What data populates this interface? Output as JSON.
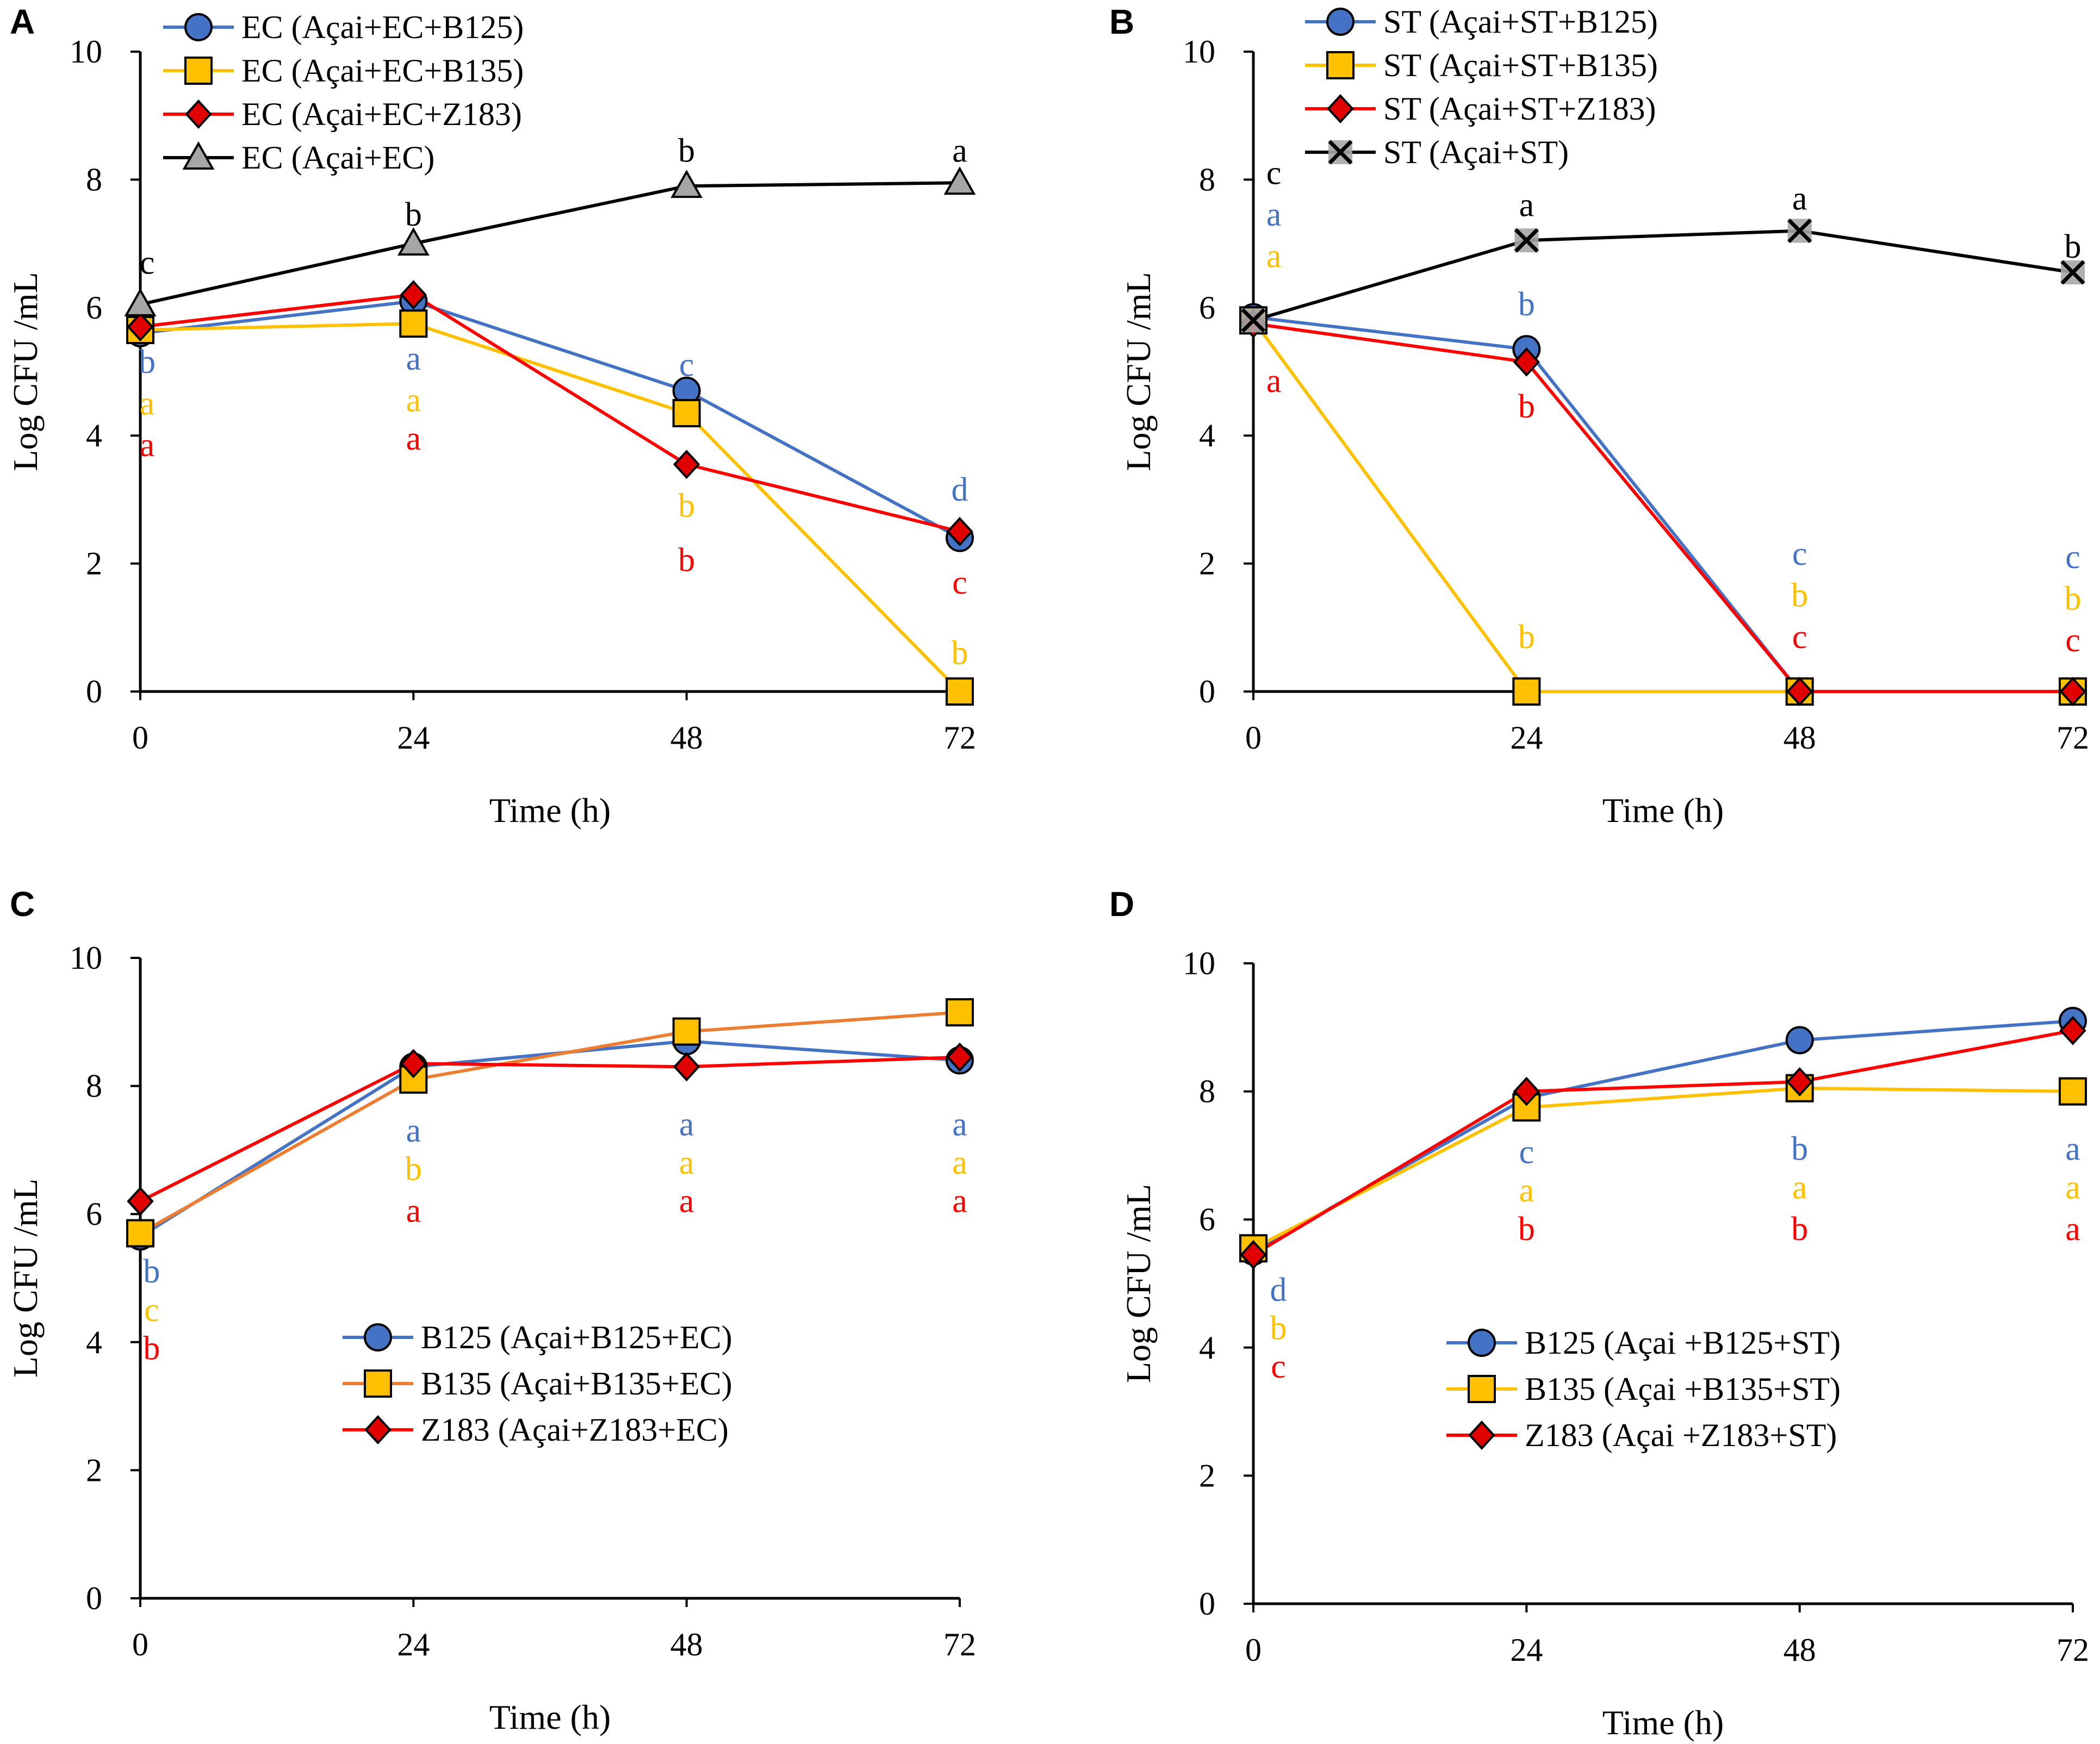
{
  "colors": {
    "blue": "#4472C4",
    "yellow": "#FFC000",
    "orange": "#ED7D31",
    "red": "#FF0000",
    "black": "#000000",
    "gray": "#A6A6A6",
    "marker_blue": "#4472C4",
    "marker_yellow": "#FFC000",
    "marker_red": "#E00000",
    "marker_gray": "#A6A6A6"
  },
  "chart_data": [
    {
      "panel_label": "A",
      "type": "line",
      "xlabel": "Time (h)",
      "ylabel": "Log CFU /mL",
      "x": [
        0,
        24,
        48,
        72
      ],
      "x_tick_labels": [
        "0",
        "24",
        "48",
        "72"
      ],
      "ylim": [
        0,
        10
      ],
      "y_ticks": [
        0,
        2,
        4,
        6,
        8,
        10
      ],
      "y_tick_labels": [
        "0",
        "2",
        "4",
        "6",
        "8",
        "10"
      ],
      "legend_position": "top-left",
      "series": [
        {
          "name": "EC (Açai+EC+B125)",
          "color": "#4472C4",
          "marker": "circle",
          "marker_fill": "#4472C4",
          "values": [
            5.6,
            6.1,
            4.7,
            2.4
          ]
        },
        {
          "name": "EC (Açai+EC+B135)",
          "color": "#FFC000",
          "marker": "square",
          "marker_fill": "#FFC000",
          "values": [
            5.65,
            5.75,
            4.35,
            0
          ]
        },
        {
          "name": "EC (Açai+EC+Z183)",
          "color": "#FF0000",
          "marker": "diamond",
          "marker_fill": "#E00000",
          "values": [
            5.7,
            6.2,
            3.55,
            2.5
          ]
        },
        {
          "name": "EC (Açai+EC)",
          "color": "#000000",
          "marker": "triangle",
          "marker_fill": "#A6A6A6",
          "values": [
            6.05,
            7.0,
            7.9,
            7.95
          ]
        }
      ],
      "annotations": [
        {
          "text": "c",
          "x": 0,
          "y": 6.7,
          "color": "#000000",
          "dx": 0.6
        },
        {
          "text": "b",
          "x": 0,
          "y": 5.15,
          "color": "#4472C4",
          "dx": 0.6
        },
        {
          "text": "a",
          "x": 0,
          "y": 4.5,
          "color": "#FFC000",
          "dx": 0.6
        },
        {
          "text": "a",
          "x": 0,
          "y": 3.85,
          "color": "#FF0000",
          "dx": 0.6
        },
        {
          "text": "b",
          "x": 24,
          "y": 7.45,
          "color": "#000000",
          "dx": 0
        },
        {
          "text": "a",
          "x": 24,
          "y": 5.2,
          "color": "#4472C4",
          "dx": 0
        },
        {
          "text": "a",
          "x": 24,
          "y": 4.55,
          "color": "#FFC000",
          "dx": 0
        },
        {
          "text": "a",
          "x": 24,
          "y": 3.95,
          "color": "#FF0000",
          "dx": 0
        },
        {
          "text": "b",
          "x": 48,
          "y": 8.45,
          "color": "#000000",
          "dx": 0
        },
        {
          "text": "c",
          "x": 48,
          "y": 5.1,
          "color": "#4472C4",
          "dx": 0
        },
        {
          "text": "b",
          "x": 48,
          "y": 2.9,
          "color": "#FFC000",
          "dx": 0
        },
        {
          "text": "b",
          "x": 48,
          "y": 2.05,
          "color": "#FF0000",
          "dx": 0
        },
        {
          "text": "a",
          "x": 72,
          "y": 8.45,
          "color": "#000000",
          "dx": 0
        },
        {
          "text": "d",
          "x": 72,
          "y": 3.15,
          "color": "#4472C4",
          "dx": 0
        },
        {
          "text": "c",
          "x": 72,
          "y": 1.7,
          "color": "#FF0000",
          "dx": 0
        },
        {
          "text": "b",
          "x": 72,
          "y": 0.6,
          "color": "#FFC000",
          "dx": 0
        }
      ]
    },
    {
      "panel_label": "B",
      "type": "line",
      "xlabel": "Time (h)",
      "ylabel": "Log CFU /mL",
      "x": [
        0,
        24,
        48,
        72
      ],
      "x_tick_labels": [
        "0",
        "24",
        "48",
        "72"
      ],
      "ylim": [
        0,
        10
      ],
      "y_ticks": [
        0,
        2,
        4,
        6,
        8,
        10
      ],
      "y_tick_labels": [
        "0",
        "2",
        "4",
        "6",
        "8",
        "10"
      ],
      "legend_position": "top-left",
      "series": [
        {
          "name": "ST (Açai+ST+B125)",
          "color": "#4472C4",
          "marker": "circle",
          "marker_fill": "#4472C4",
          "values": [
            5.85,
            5.35,
            0,
            0
          ]
        },
        {
          "name": "ST (Açai+ST+B135)",
          "color": "#FFC000",
          "marker": "square",
          "marker_fill": "#FFC000",
          "values": [
            5.8,
            0,
            0,
            0
          ]
        },
        {
          "name": "ST (Açai+ST+Z183)",
          "color": "#FF0000",
          "marker": "diamond",
          "marker_fill": "#E00000",
          "values": [
            5.75,
            5.15,
            0,
            0
          ]
        },
        {
          "name": "ST (Açai+ST)",
          "color": "#000000",
          "marker": "x",
          "marker_fill": "#A6A6A6",
          "values": [
            5.8,
            7.05,
            7.2,
            6.55
          ]
        }
      ],
      "annotations": [
        {
          "text": "c",
          "x": 0,
          "y": 8.1,
          "color": "#000000",
          "dx": 1.8
        },
        {
          "text": "a",
          "x": 0,
          "y": 7.45,
          "color": "#4472C4",
          "dx": 1.8
        },
        {
          "text": "a",
          "x": 0,
          "y": 6.8,
          "color": "#FFC000",
          "dx": 1.8
        },
        {
          "text": "a",
          "x": 0,
          "y": 4.85,
          "color": "#FF0000",
          "dx": 1.8
        },
        {
          "text": "a",
          "x": 24,
          "y": 7.6,
          "color": "#000000",
          "dx": 0
        },
        {
          "text": "b",
          "x": 24,
          "y": 6.05,
          "color": "#4472C4",
          "dx": 0
        },
        {
          "text": "b",
          "x": 24,
          "y": 4.45,
          "color": "#FF0000",
          "dx": 0
        },
        {
          "text": "b",
          "x": 24,
          "y": 0.85,
          "color": "#FFC000",
          "dx": 0
        },
        {
          "text": "a",
          "x": 48,
          "y": 7.7,
          "color": "#000000",
          "dx": 0
        },
        {
          "text": "c",
          "x": 48,
          "y": 2.15,
          "color": "#4472C4",
          "dx": 0
        },
        {
          "text": "b",
          "x": 48,
          "y": 1.5,
          "color": "#FFC000",
          "dx": 0
        },
        {
          "text": "c",
          "x": 48,
          "y": 0.85,
          "color": "#FF0000",
          "dx": 0
        },
        {
          "text": "b",
          "x": 72,
          "y": 6.95,
          "color": "#000000",
          "dx": 0
        },
        {
          "text": "c",
          "x": 72,
          "y": 2.1,
          "color": "#4472C4",
          "dx": 0
        },
        {
          "text": "b",
          "x": 72,
          "y": 1.45,
          "color": "#FFC000",
          "dx": 0
        },
        {
          "text": "c",
          "x": 72,
          "y": 0.8,
          "color": "#FF0000",
          "dx": 0
        }
      ]
    },
    {
      "panel_label": "C",
      "type": "line",
      "xlabel": "Time (h)",
      "ylabel": "Log CFU /mL",
      "x": [
        0,
        24,
        48,
        72
      ],
      "x_tick_labels": [
        "0",
        "24",
        "48",
        "72"
      ],
      "ylim": [
        0,
        10
      ],
      "y_ticks": [
        0,
        2,
        4,
        6,
        8,
        10
      ],
      "y_tick_labels": [
        "0",
        "2",
        "4",
        "6",
        "8",
        "10"
      ],
      "legend_position": "lower-center",
      "series": [
        {
          "name": "B125 (Açai+B125+EC)",
          "color": "#4472C4",
          "marker": "circle",
          "marker_fill": "#4472C4",
          "values": [
            5.65,
            8.3,
            8.7,
            8.4
          ]
        },
        {
          "name": "B135 (Açai+B135+EC)",
          "color": "#ED7D31",
          "marker": "square",
          "marker_fill": "#FFC000",
          "values": [
            5.7,
            8.1,
            8.85,
            9.15
          ]
        },
        {
          "name": "Z183 (Açai+Z183+EC)",
          "color": "#FF0000",
          "marker": "diamond",
          "marker_fill": "#E00000",
          "values": [
            6.2,
            8.35,
            8.3,
            8.45
          ]
        }
      ],
      "annotations": [
        {
          "text": "b",
          "x": 0,
          "y": 5.1,
          "color": "#4472C4",
          "dx": 1.0
        },
        {
          "text": "c",
          "x": 0,
          "y": 4.5,
          "color": "#FFC000",
          "dx": 1.0
        },
        {
          "text": "b",
          "x": 0,
          "y": 3.9,
          "color": "#FF0000",
          "dx": 1.0
        },
        {
          "text": "a",
          "x": 24,
          "y": 7.3,
          "color": "#4472C4",
          "dx": 0
        },
        {
          "text": "b",
          "x": 24,
          "y": 6.7,
          "color": "#FFC000",
          "dx": 0
        },
        {
          "text": "a",
          "x": 24,
          "y": 6.05,
          "color": "#FF0000",
          "dx": 0
        },
        {
          "text": "a",
          "x": 48,
          "y": 7.4,
          "color": "#4472C4",
          "dx": 0
        },
        {
          "text": "a",
          "x": 48,
          "y": 6.8,
          "color": "#FFC000",
          "dx": 0
        },
        {
          "text": "a",
          "x": 48,
          "y": 6.2,
          "color": "#FF0000",
          "dx": 0
        },
        {
          "text": "a",
          "x": 72,
          "y": 7.4,
          "color": "#4472C4",
          "dx": 0
        },
        {
          "text": "a",
          "x": 72,
          "y": 6.8,
          "color": "#FFC000",
          "dx": 0
        },
        {
          "text": "a",
          "x": 72,
          "y": 6.2,
          "color": "#FF0000",
          "dx": 0
        }
      ]
    },
    {
      "panel_label": "D",
      "type": "line",
      "xlabel": "Time (h)",
      "ylabel": "Log CFU /mL",
      "x": [
        0,
        24,
        48,
        72
      ],
      "x_tick_labels": [
        "0",
        "24",
        "48",
        "72"
      ],
      "ylim": [
        0,
        10
      ],
      "y_ticks": [
        0,
        2,
        4,
        6,
        8,
        10
      ],
      "y_tick_labels": [
        "0",
        "2",
        "4",
        "6",
        "8",
        "10"
      ],
      "legend_position": "lower-center",
      "series": [
        {
          "name": "B125 (Açai +B125+ST)",
          "color": "#4472C4",
          "marker": "circle",
          "marker_fill": "#4472C4",
          "values": [
            5.5,
            7.9,
            8.8,
            9.1
          ]
        },
        {
          "name": "B135 (Açai +B135+ST)",
          "color": "#FFC000",
          "marker": "square",
          "marker_fill": "#FFC000",
          "values": [
            5.55,
            7.75,
            8.05,
            8.0
          ]
        },
        {
          "name": "Z183 (Açai +Z183+ST)",
          "color": "#FF0000",
          "marker": "diamond",
          "marker_fill": "#E00000",
          "values": [
            5.45,
            8.0,
            8.15,
            8.95
          ]
        }
      ],
      "annotations": [
        {
          "text": "d",
          "x": 0,
          "y": 4.9,
          "color": "#4472C4",
          "dx": 2.2
        },
        {
          "text": "b",
          "x": 0,
          "y": 4.3,
          "color": "#FFC000",
          "dx": 2.2
        },
        {
          "text": "c",
          "x": 0,
          "y": 3.7,
          "color": "#FF0000",
          "dx": 2.2
        },
        {
          "text": "c",
          "x": 24,
          "y": 7.05,
          "color": "#4472C4",
          "dx": 0
        },
        {
          "text": "a",
          "x": 24,
          "y": 6.45,
          "color": "#FFC000",
          "dx": 0
        },
        {
          "text": "b",
          "x": 24,
          "y": 5.85,
          "color": "#FF0000",
          "dx": 0
        },
        {
          "text": "b",
          "x": 48,
          "y": 7.1,
          "color": "#4472C4",
          "dx": 0
        },
        {
          "text": "a",
          "x": 48,
          "y": 6.5,
          "color": "#FFC000",
          "dx": 0
        },
        {
          "text": "b",
          "x": 48,
          "y": 5.85,
          "color": "#FF0000",
          "dx": 0
        },
        {
          "text": "a",
          "x": 72,
          "y": 7.1,
          "color": "#4472C4",
          "dx": 0
        },
        {
          "text": "a",
          "x": 72,
          "y": 6.5,
          "color": "#FFC000",
          "dx": 0
        },
        {
          "text": "a",
          "x": 72,
          "y": 5.85,
          "color": "#FF0000",
          "dx": 0
        }
      ]
    }
  ]
}
